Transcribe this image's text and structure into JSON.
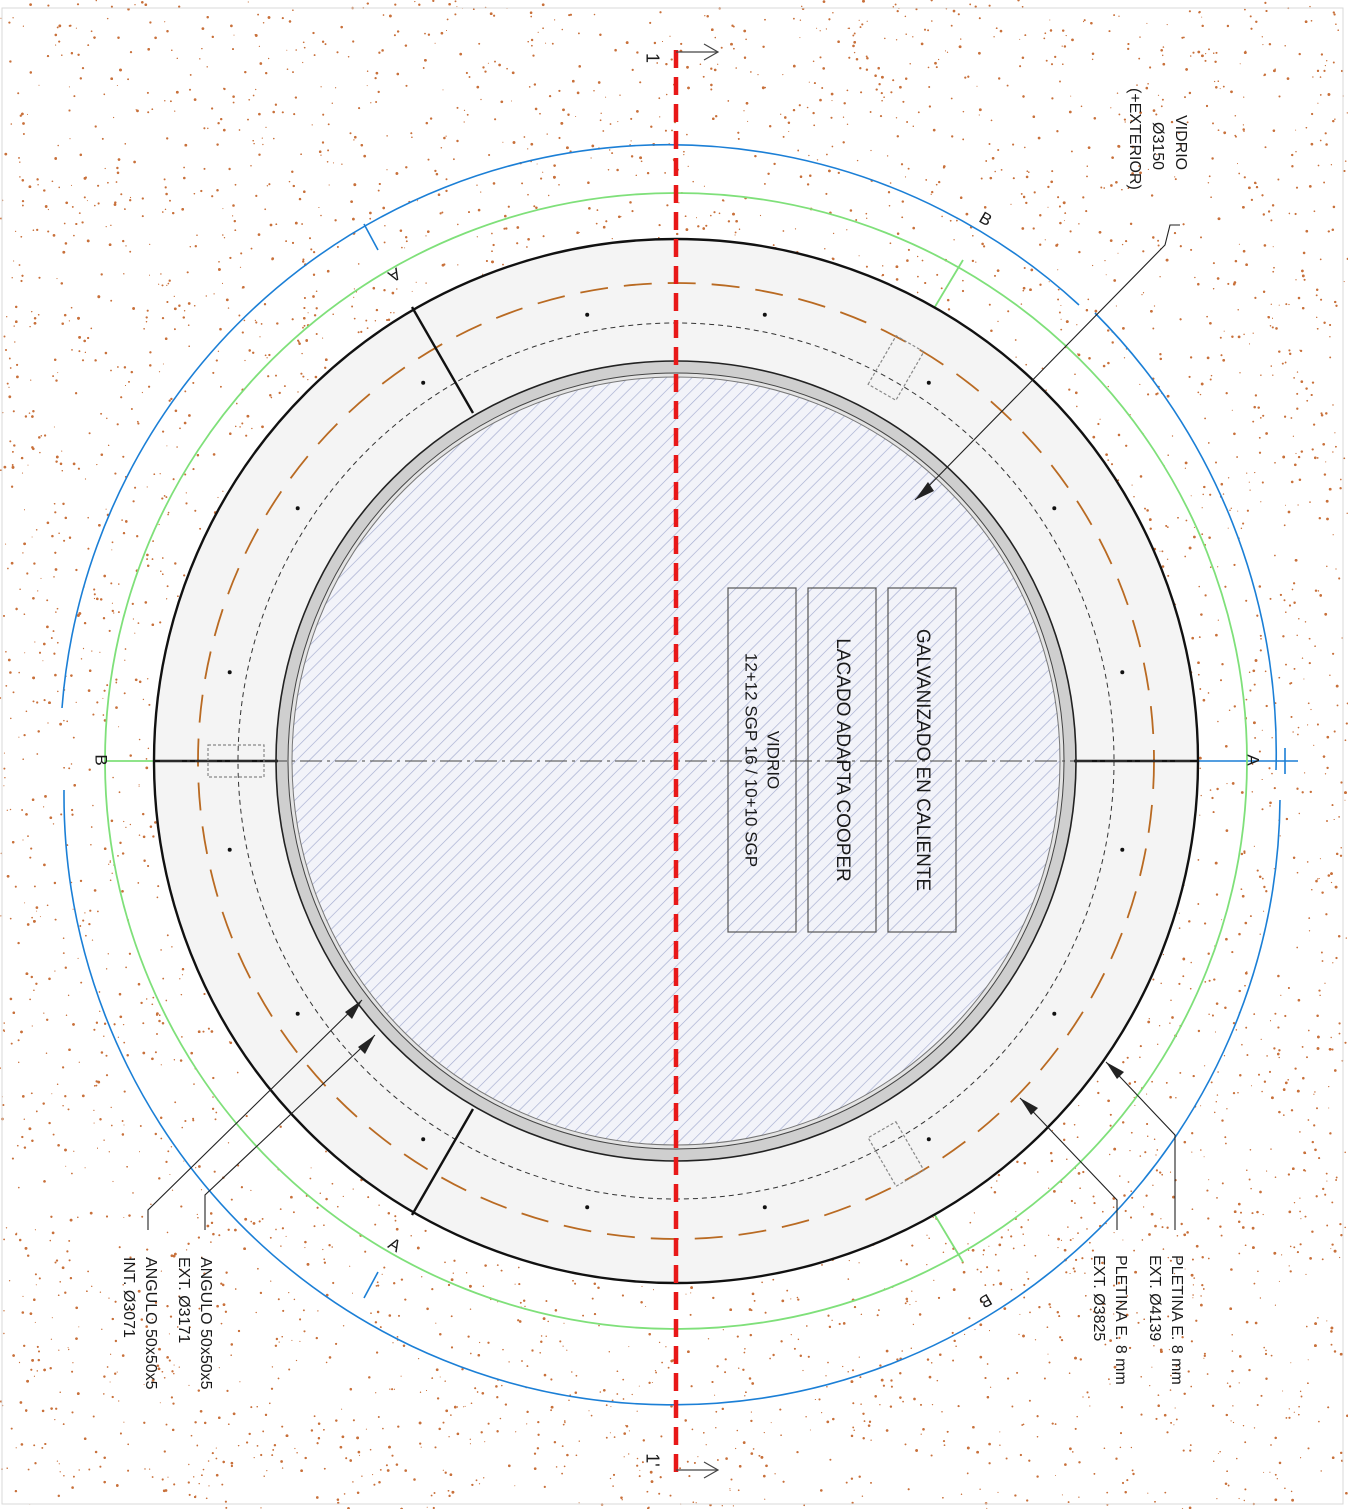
{
  "colors": {
    "soil_dots": "#c8703a",
    "background": "#ffffff",
    "ring_fill": "#f4f4f4",
    "glass_hatch": "#9aa4c8",
    "section_line": "#e81818",
    "blue_dimension": "#1b7fd6",
    "green_dimension": "#7fe07a",
    "dashed_orange": "#b96a22",
    "black": "#111111"
  },
  "section_markers": {
    "top": "1",
    "bottom": "1'"
  },
  "cut_markers": {
    "a_right": "A",
    "a_top_left": "A",
    "a_bottom_left": "A",
    "b_left": "B",
    "b_top_right": "B",
    "b_bottom_right": "B"
  },
  "center_boxes": [
    {
      "id": "galvanizado",
      "lines": [
        "GALVANIZADO EN CALIENTE"
      ]
    },
    {
      "id": "lacado",
      "lines": [
        "LACADO ADAPTA COOPER"
      ]
    },
    {
      "id": "vidrio",
      "lines": [
        "VIDRIO",
        "12+12 SGP  16 / 10+10 SGP"
      ]
    }
  ],
  "callouts": {
    "vidrio_top": [
      "VIDRIO",
      "Ø3150",
      "(+EXTERIOR)"
    ],
    "pletina_outer": [
      "PLETINA E. 8 mm",
      "EXT. Ø4139"
    ],
    "pletina_inner": [
      "PLETINA E. 8 mm",
      "EXT. Ø3825"
    ],
    "angulo_ext": [
      "ANGULO 50x50x5",
      "EXT. Ø3171"
    ],
    "angulo_int": [
      "ANGULO 50x50x5",
      "INT. Ø3071"
    ]
  },
  "icons": [
    "section-arrow-icon",
    "cut-arrow-icon"
  ]
}
